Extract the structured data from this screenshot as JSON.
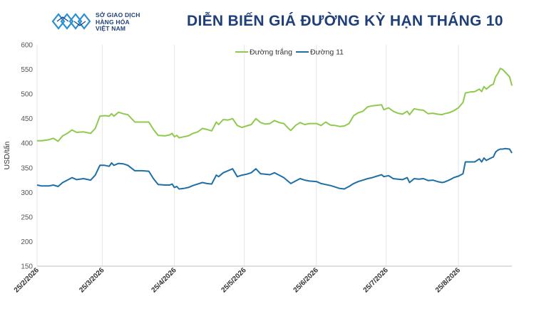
{
  "logo": {
    "line1": "SỞ GIAO DỊCH",
    "line2": "HÀNG HÓA",
    "line3": "VIỆT NAM"
  },
  "colors": {
    "title": "#1f3f7a",
    "series_white": "#8fca4e",
    "series_11": "#1d6fa5",
    "grid": "#e6e6e6"
  },
  "chart_data": {
    "type": "line",
    "title": "DIỄN BIẾN GIÁ ĐƯỜNG KỲ HẠN THÁNG 10",
    "ylabel": "USD/tấn",
    "xlabel": "",
    "ylim": [
      150,
      600
    ],
    "yticks": [
      150,
      200,
      250,
      300,
      350,
      400,
      450,
      500,
      550,
      600
    ],
    "grid": "vertical",
    "legend": "top-center",
    "x_start": "25/2/2026",
    "x_end": "25/8/2026",
    "xticks": [
      "25/2/2026",
      "25/3/2026",
      "25/4/2026",
      "25/5/2026",
      "25/6/2026",
      "25/7/2026",
      "25/8/2026"
    ],
    "series": [
      {
        "name": "Đường trắng",
        "color": "#8fca4e",
        "points": [
          [
            "25/2/2026",
            405
          ],
          [
            "27/2/2026",
            405
          ],
          [
            "2/3/2026",
            407
          ],
          [
            "4/3/2026",
            410
          ],
          [
            "6/3/2026",
            404
          ],
          [
            "8/3/2026",
            415
          ],
          [
            "10/3/2026",
            420
          ],
          [
            "12/3/2026",
            427
          ],
          [
            "14/3/2026",
            422
          ],
          [
            "17/3/2026",
            423
          ],
          [
            "20/3/2026",
            420
          ],
          [
            "22/3/2026",
            430
          ],
          [
            "24/3/2026",
            455
          ],
          [
            "26/3/2026",
            456
          ],
          [
            "28/3/2026",
            455
          ],
          [
            "29/3/2026",
            460
          ],
          [
            "30/3/2026",
            455
          ],
          [
            "1/4/2026",
            463
          ],
          [
            "3/4/2026",
            460
          ],
          [
            "5/4/2026",
            458
          ],
          [
            "8/4/2026",
            443
          ],
          [
            "11/4/2026",
            443
          ],
          [
            "14/4/2026",
            443
          ],
          [
            "16/4/2026",
            428
          ],
          [
            "18/4/2026",
            416
          ],
          [
            "21/4/2026",
            415
          ],
          [
            "23/4/2026",
            417
          ],
          [
            "24/4/2026",
            420
          ],
          [
            "25/4/2026",
            413
          ],
          [
            "26/4/2026",
            416
          ],
          [
            "27/4/2026",
            411
          ],
          [
            "29/4/2026",
            413
          ],
          [
            "1/5/2026",
            415
          ],
          [
            "3/5/2026",
            420
          ],
          [
            "5/5/2026",
            423
          ],
          [
            "7/5/2026",
            430
          ],
          [
            "9/5/2026",
            428
          ],
          [
            "11/5/2026",
            425
          ],
          [
            "13/5/2026",
            443
          ],
          [
            "14/5/2026",
            438
          ],
          [
            "16/5/2026",
            448
          ],
          [
            "18/5/2026",
            447
          ],
          [
            "20/5/2026",
            450
          ],
          [
            "22/5/2026",
            436
          ],
          [
            "24/5/2026",
            432
          ],
          [
            "26/5/2026",
            435
          ],
          [
            "28/5/2026",
            438
          ],
          [
            "30/5/2026",
            450
          ],
          [
            "1/6/2026",
            442
          ],
          [
            "3/6/2026",
            439
          ],
          [
            "5/6/2026",
            440
          ],
          [
            "7/6/2026",
            446
          ],
          [
            "9/6/2026",
            442
          ],
          [
            "11/6/2026",
            440
          ],
          [
            "13/6/2026",
            430
          ],
          [
            "14/6/2026",
            426
          ],
          [
            "16/6/2026",
            436
          ],
          [
            "18/6/2026",
            442
          ],
          [
            "20/6/2026",
            438
          ],
          [
            "22/6/2026",
            440
          ],
          [
            "25/6/2026",
            440
          ],
          [
            "27/6/2026",
            436
          ],
          [
            "29/6/2026",
            443
          ],
          [
            "1/7/2026",
            437
          ],
          [
            "3/7/2026",
            436
          ],
          [
            "5/7/2026",
            434
          ],
          [
            "7/7/2026",
            435
          ],
          [
            "9/7/2026",
            440
          ],
          [
            "11/7/2026",
            456
          ],
          [
            "13/7/2026",
            462
          ],
          [
            "15/7/2026",
            465
          ],
          [
            "17/7/2026",
            474
          ],
          [
            "19/7/2026",
            476
          ],
          [
            "21/7/2026",
            477
          ],
          [
            "23/7/2026",
            478
          ],
          [
            "24/7/2026",
            468
          ],
          [
            "26/7/2026",
            472
          ],
          [
            "28/7/2026",
            465
          ],
          [
            "30/7/2026",
            461
          ],
          [
            "1/8/2026",
            459
          ],
          [
            "3/8/2026",
            465
          ],
          [
            "4/8/2026",
            458
          ],
          [
            "6/8/2026",
            470
          ],
          [
            "8/8/2026",
            468
          ],
          [
            "10/8/2026",
            467
          ],
          [
            "12/8/2026",
            460
          ],
          [
            "14/8/2026",
            461
          ],
          [
            "16/8/2026",
            459
          ],
          [
            "18/8/2026",
            458
          ],
          [
            "19/8/2026",
            460
          ],
          [
            "21/8/2026",
            462
          ],
          [
            "23/8/2026",
            466
          ],
          [
            "25/8/2026",
            472
          ],
          [
            "27/8/2026",
            483
          ],
          [
            "28/8/2026",
            502
          ],
          [
            "30/8/2026",
            504
          ],
          [
            "1/9/2026",
            505
          ],
          [
            "3/9/2026",
            510
          ],
          [
            "4/9/2026",
            505
          ],
          [
            "5/9/2026",
            515
          ],
          [
            "6/9/2026",
            510
          ],
          [
            "8/9/2026",
            518
          ],
          [
            "9/9/2026",
            520
          ],
          [
            "10/9/2026",
            535
          ],
          [
            "11/9/2026",
            542
          ],
          [
            "12/9/2026",
            552
          ],
          [
            "13/9/2026",
            550
          ],
          [
            "14/9/2026",
            545
          ],
          [
            "16/9/2026",
            535
          ],
          [
            "17/9/2026",
            517
          ]
        ]
      },
      {
        "name": "Đường 11",
        "color": "#1d6fa5",
        "points": [
          [
            "25/2/2026",
            315
          ],
          [
            "27/2/2026",
            313
          ],
          [
            "2/3/2026",
            313
          ],
          [
            "4/3/2026",
            315
          ],
          [
            "6/3/2026",
            312
          ],
          [
            "8/3/2026",
            320
          ],
          [
            "10/3/2026",
            325
          ],
          [
            "12/3/2026",
            330
          ],
          [
            "14/3/2026",
            326
          ],
          [
            "17/3/2026",
            328
          ],
          [
            "20/3/2026",
            325
          ],
          [
            "22/3/2026",
            335
          ],
          [
            "24/3/2026",
            355
          ],
          [
            "26/3/2026",
            355
          ],
          [
            "28/3/2026",
            353
          ],
          [
            "29/3/2026",
            360
          ],
          [
            "30/3/2026",
            355
          ],
          [
            "1/4/2026",
            359
          ],
          [
            "3/4/2026",
            358
          ],
          [
            "5/4/2026",
            355
          ],
          [
            "8/4/2026",
            344
          ],
          [
            "11/4/2026",
            344
          ],
          [
            "14/4/2026",
            343
          ],
          [
            "16/4/2026",
            328
          ],
          [
            "18/4/2026",
            316
          ],
          [
            "21/4/2026",
            315
          ],
          [
            "23/4/2026",
            315
          ],
          [
            "24/4/2026",
            317
          ],
          [
            "25/4/2026",
            310
          ],
          [
            "26/4/2026",
            312
          ],
          [
            "27/4/2026",
            307
          ],
          [
            "29/4/2026",
            308
          ],
          [
            "1/5/2026",
            310
          ],
          [
            "3/5/2026",
            314
          ],
          [
            "5/5/2026",
            317
          ],
          [
            "7/5/2026",
            320
          ],
          [
            "9/5/2026",
            318
          ],
          [
            "11/5/2026",
            317
          ],
          [
            "13/5/2026",
            335
          ],
          [
            "14/5/2026",
            332
          ],
          [
            "16/5/2026",
            340
          ],
          [
            "18/5/2026",
            344
          ],
          [
            "20/5/2026",
            348
          ],
          [
            "22/5/2026",
            332
          ],
          [
            "24/5/2026",
            335
          ],
          [
            "26/5/2026",
            337
          ],
          [
            "28/5/2026",
            340
          ],
          [
            "30/5/2026",
            348
          ],
          [
            "1/6/2026",
            338
          ],
          [
            "3/6/2026",
            337
          ],
          [
            "5/6/2026",
            336
          ],
          [
            "7/6/2026",
            340
          ],
          [
            "9/6/2026",
            335
          ],
          [
            "11/6/2026",
            330
          ],
          [
            "13/6/2026",
            322
          ],
          [
            "14/6/2026",
            318
          ],
          [
            "16/6/2026",
            323
          ],
          [
            "18/6/2026",
            328
          ],
          [
            "20/6/2026",
            325
          ],
          [
            "22/6/2026",
            323
          ],
          [
            "25/6/2026",
            322
          ],
          [
            "27/6/2026",
            318
          ],
          [
            "29/6/2026",
            316
          ],
          [
            "1/7/2026",
            314
          ],
          [
            "3/7/2026",
            311
          ],
          [
            "5/7/2026",
            308
          ],
          [
            "7/7/2026",
            307
          ],
          [
            "9/7/2026",
            312
          ],
          [
            "11/7/2026",
            318
          ],
          [
            "13/7/2026",
            322
          ],
          [
            "15/7/2026",
            325
          ],
          [
            "17/7/2026",
            328
          ],
          [
            "19/7/2026",
            330
          ],
          [
            "21/7/2026",
            333
          ],
          [
            "23/7/2026",
            336
          ],
          [
            "24/7/2026",
            332
          ],
          [
            "26/7/2026",
            334
          ],
          [
            "28/7/2026",
            328
          ],
          [
            "30/7/2026",
            327
          ],
          [
            "1/8/2026",
            326
          ],
          [
            "3/8/2026",
            330
          ],
          [
            "4/8/2026",
            320
          ],
          [
            "6/8/2026",
            328
          ],
          [
            "8/8/2026",
            327
          ],
          [
            "10/8/2026",
            328
          ],
          [
            "12/8/2026",
            324
          ],
          [
            "14/8/2026",
            325
          ],
          [
            "16/8/2026",
            322
          ],
          [
            "18/8/2026",
            320
          ],
          [
            "19/8/2026",
            321
          ],
          [
            "21/8/2026",
            325
          ],
          [
            "23/8/2026",
            330
          ],
          [
            "25/8/2026",
            333
          ],
          [
            "27/8/2026",
            338
          ],
          [
            "28/8/2026",
            362
          ],
          [
            "30/8/2026",
            362
          ],
          [
            "1/9/2026",
            362
          ],
          [
            "3/9/2026",
            368
          ],
          [
            "4/9/2026",
            362
          ],
          [
            "5/9/2026",
            370
          ],
          [
            "6/9/2026",
            365
          ],
          [
            "8/9/2026",
            370
          ],
          [
            "9/9/2026",
            372
          ],
          [
            "10/9/2026",
            382
          ],
          [
            "11/9/2026",
            386
          ],
          [
            "12/9/2026",
            388
          ],
          [
            "13/9/2026",
            388
          ],
          [
            "14/9/2026",
            389
          ],
          [
            "16/9/2026",
            388
          ],
          [
            "17/9/2026",
            380
          ]
        ]
      }
    ]
  }
}
